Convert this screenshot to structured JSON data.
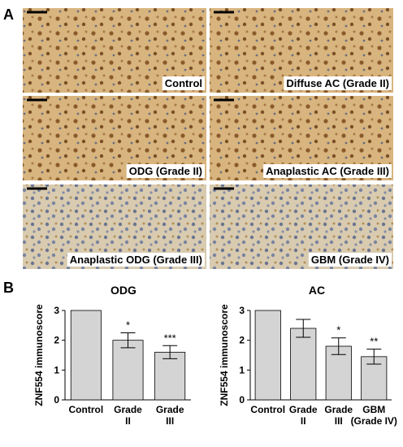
{
  "panel_labels": [
    "A",
    "B"
  ],
  "images": [
    "Control",
    "Diffuse AC (Grade II)",
    "ODG (Grade II)",
    "Anaplastic AC (Grade III)",
    "Anaplastic ODG (Grade III)",
    "GBM (Grade IV)"
  ],
  "chart_data": [
    {
      "type": "bar",
      "title": "ODG",
      "y_label": "ZNF554 immunoscore",
      "categories": [
        [
          "Control"
        ],
        [
          "Grade",
          "II"
        ],
        [
          "Grade",
          "III"
        ]
      ],
      "values": [
        3,
        2.0,
        1.6
      ],
      "errors": [
        null,
        0.25,
        0.22
      ],
      "annotations": [
        null,
        "*",
        "***"
      ],
      "color": "#d4d4d4",
      "ylim": [
        0,
        3
      ],
      "yticks": [
        0,
        1,
        2,
        3
      ]
    },
    {
      "type": "bar",
      "title": "AC",
      "y_label": "ZNF554 immunoscore",
      "categories": [
        [
          "Control"
        ],
        [
          "Grade",
          "II"
        ],
        [
          "Grade",
          "III"
        ],
        [
          "GBM",
          "(Grade IV)"
        ]
      ],
      "values": [
        3,
        2.4,
        1.8,
        1.45
      ],
      "errors": [
        null,
        0.3,
        0.28,
        0.25
      ],
      "annotations": [
        null,
        null,
        "*",
        "**"
      ],
      "color": "#d4d4d4",
      "ylim": [
        0,
        3
      ],
      "yticks": [
        0,
        1,
        2,
        3
      ]
    }
  ]
}
